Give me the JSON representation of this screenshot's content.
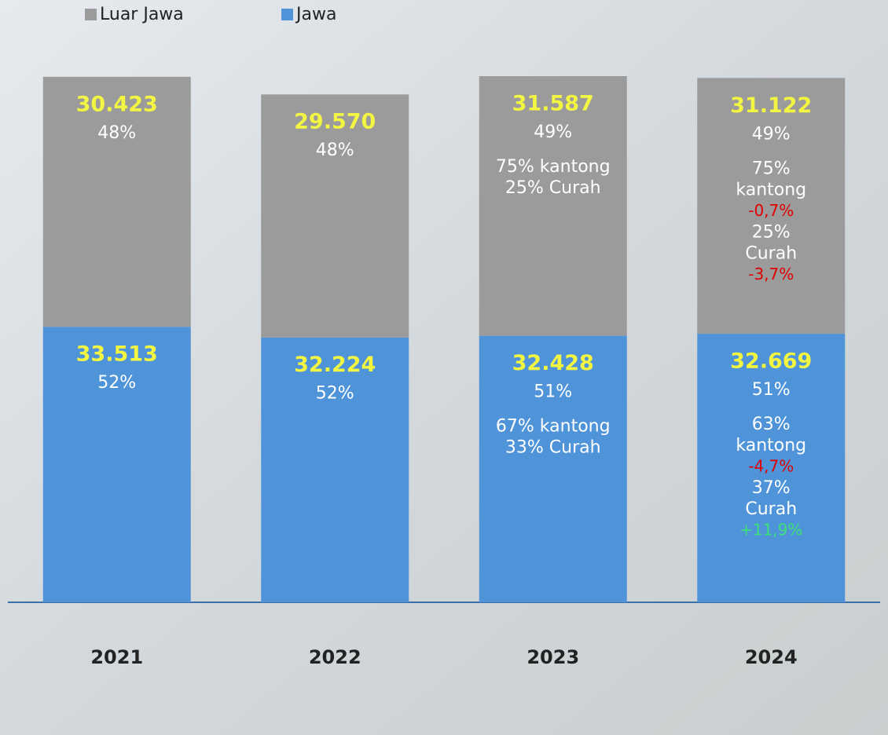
{
  "chart_data": {
    "type": "stacked-bar",
    "categories": [
      "2021",
      "2022",
      "2023",
      "2024"
    ],
    "series": [
      {
        "name": "Jawa",
        "color": "#4f94d8",
        "values": [
          33513,
          32224,
          32428,
          32669
        ],
        "value_labels": [
          "33.513",
          "32.224",
          "32.428",
          "32.669"
        ],
        "share_labels": [
          "52%",
          "52%",
          "51%",
          "51%"
        ],
        "notes": [
          [],
          [],
          [
            "67% kantong",
            "33% Curah"
          ],
          [
            "63%",
            "kantong",
            {
              "text": "-4,7%",
              "color": "#e00000"
            },
            "37%",
            "Curah",
            {
              "text": "+11,9%",
              "color": "#3ee07a"
            }
          ]
        ]
      },
      {
        "name": "Luar Jawa",
        "color": "#9b9b9b",
        "values": [
          30423,
          29570,
          31587,
          31122
        ],
        "value_labels": [
          "30.423",
          "29.570",
          "31.587",
          "31.122"
        ],
        "share_labels": [
          "48%",
          "48%",
          "49%",
          "49%"
        ],
        "notes": [
          [],
          [],
          [
            "75% kantong",
            "25% Curah"
          ],
          [
            "75%",
            "kantong",
            {
              "text": "-0,7%",
              "color": "#e00000"
            },
            "25%",
            "Curah",
            {
              "text": "-3,7%",
              "color": "#e00000"
            }
          ]
        ]
      }
    ],
    "value_label_color": "#f2f542",
    "legend": "top-left"
  }
}
